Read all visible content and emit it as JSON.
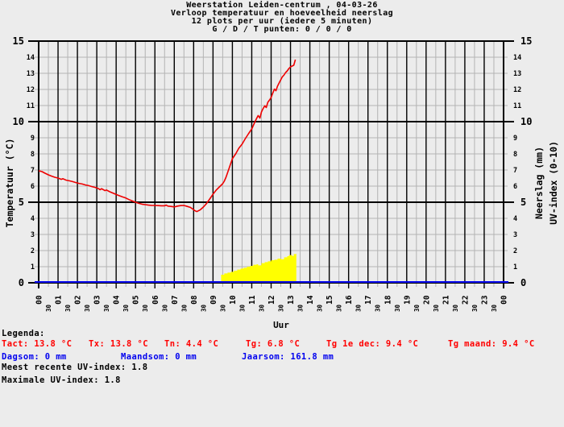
{
  "title": {
    "line1": "Weerstation Leiden-centrum , 04-03-26",
    "line2": "Verloop temperatuur en hoeveelheid neerslag",
    "line3": "12 plots per uur (iedere 5 minuten)",
    "line4": "G / D / T punten: 0 / 0 / 0"
  },
  "colors": {
    "background": "#ececec",
    "grid_minor": "#b3b3b3",
    "grid_major": "#000000",
    "temperature": "#ee0000",
    "precipitation": "#0000ee",
    "uv_fill": "#ffff00"
  },
  "legend": {
    "heading": "Legenda:",
    "temp_items": [
      "Tact: 13.8 °C",
      "Tx: 13.8 °C",
      "Tn: 4.4 °C",
      "Tg: 6.8 °C",
      "Tg 1e dec: 9.4 °C",
      "Tg maand: 9.4 °C"
    ],
    "rain_items": [
      "Dagsom: 0 mm",
      "Maandsom: 0 mm",
      "Jaarsom: 161.8 mm"
    ],
    "uv_recent": "Meest recente UV-index: 1.8",
    "uv_max": "Maximale UV-index: 1.8"
  },
  "chart_data": {
    "type": "line",
    "title": "Weerstation Leiden-centrum , 04-03-26 — Verloop temperatuur en hoeveelheid neerslag",
    "xlabel": "Uur",
    "ylabel_left": "Temperatuur (°C)",
    "ylabel_right_1": "Neerslag (mm)",
    "ylabel_right_2": "UV-index (0-10)",
    "xlim": [
      0,
      24
    ],
    "ylim": [
      0,
      15
    ],
    "y_major_step": 5,
    "y_minor_step": 1,
    "x_major_step_hours": 1,
    "x_minor_step_hours": 0.5,
    "hour_labels": [
      "00",
      "01",
      "02",
      "03",
      "04",
      "05",
      "06",
      "07",
      "08",
      "09",
      "10",
      "11",
      "12",
      "13",
      "14",
      "15",
      "16",
      "17",
      "18",
      "19",
      "20",
      "21",
      "22",
      "23",
      "00"
    ],
    "half_hour_label": "30",
    "grid": true,
    "legend_position": "below",
    "series": [
      {
        "name": "Temperatuur (°C)",
        "style": "line",
        "color": "#ee0000",
        "points": [
          [
            0,
            6.95
          ],
          [
            0.17,
            6.9
          ],
          [
            0.33,
            6.8
          ],
          [
            0.5,
            6.7
          ],
          [
            0.67,
            6.62
          ],
          [
            0.83,
            6.55
          ],
          [
            1,
            6.5
          ],
          [
            1.17,
            6.42
          ],
          [
            1.25,
            6.46
          ],
          [
            1.42,
            6.37
          ],
          [
            1.58,
            6.33
          ],
          [
            1.75,
            6.28
          ],
          [
            1.92,
            6.22
          ],
          [
            2.08,
            6.17
          ],
          [
            2.25,
            6.13
          ],
          [
            2.42,
            6.07
          ],
          [
            2.58,
            6.03
          ],
          [
            2.75,
            5.97
          ],
          [
            2.92,
            5.92
          ],
          [
            3.08,
            5.85
          ],
          [
            3.17,
            5.78
          ],
          [
            3.25,
            5.84
          ],
          [
            3.42,
            5.72
          ],
          [
            3.5,
            5.76
          ],
          [
            3.67,
            5.65
          ],
          [
            3.83,
            5.57
          ],
          [
            4,
            5.48
          ],
          [
            4.17,
            5.4
          ],
          [
            4.33,
            5.33
          ],
          [
            4.5,
            5.26
          ],
          [
            4.67,
            5.16
          ],
          [
            4.83,
            5.08
          ],
          [
            5,
            5.0
          ],
          [
            5.17,
            4.93
          ],
          [
            5.33,
            4.88
          ],
          [
            5.5,
            4.85
          ],
          [
            5.67,
            4.82
          ],
          [
            5.83,
            4.8
          ],
          [
            6,
            4.8
          ],
          [
            6.17,
            4.79
          ],
          [
            6.33,
            4.78
          ],
          [
            6.5,
            4.78
          ],
          [
            6.58,
            4.82
          ],
          [
            6.67,
            4.76
          ],
          [
            6.83,
            4.74
          ],
          [
            7,
            4.71
          ],
          [
            7.17,
            4.76
          ],
          [
            7.33,
            4.79
          ],
          [
            7.5,
            4.8
          ],
          [
            7.67,
            4.74
          ],
          [
            7.83,
            4.68
          ],
          [
            8,
            4.54
          ],
          [
            8.08,
            4.46
          ],
          [
            8.17,
            4.42
          ],
          [
            8.33,
            4.52
          ],
          [
            8.5,
            4.7
          ],
          [
            8.67,
            4.92
          ],
          [
            8.83,
            5.2
          ],
          [
            9,
            5.5
          ],
          [
            9.17,
            5.76
          ],
          [
            9.33,
            5.95
          ],
          [
            9.5,
            6.15
          ],
          [
            9.58,
            6.3
          ],
          [
            9.67,
            6.55
          ],
          [
            9.83,
            7.1
          ],
          [
            10,
            7.7
          ],
          [
            10.17,
            8.0
          ],
          [
            10.33,
            8.35
          ],
          [
            10.5,
            8.6
          ],
          [
            10.67,
            8.95
          ],
          [
            10.83,
            9.25
          ],
          [
            11,
            9.55
          ],
          [
            11.17,
            10.0
          ],
          [
            11.25,
            10.2
          ],
          [
            11.33,
            10.38
          ],
          [
            11.42,
            10.22
          ],
          [
            11.5,
            10.6
          ],
          [
            11.58,
            10.8
          ],
          [
            11.67,
            10.98
          ],
          [
            11.75,
            10.88
          ],
          [
            11.83,
            11.2
          ],
          [
            11.92,
            11.35
          ],
          [
            12,
            11.5
          ],
          [
            12.08,
            11.75
          ],
          [
            12.17,
            12.02
          ],
          [
            12.25,
            11.92
          ],
          [
            12.33,
            12.2
          ],
          [
            12.42,
            12.42
          ],
          [
            12.5,
            12.6
          ],
          [
            12.58,
            12.78
          ],
          [
            12.67,
            12.9
          ],
          [
            12.75,
            13.05
          ],
          [
            12.83,
            13.15
          ],
          [
            12.92,
            13.3
          ],
          [
            13,
            13.4
          ],
          [
            13.08,
            13.45
          ],
          [
            13.17,
            13.5
          ],
          [
            13.25,
            13.85
          ]
        ]
      },
      {
        "name": "UV-index (0-10)",
        "style": "step-area",
        "color": "#ffff00",
        "end_x": 13.3,
        "points": [
          [
            9.42,
            0.5
          ],
          [
            9.58,
            0.58
          ],
          [
            9.75,
            0.63
          ],
          [
            9.92,
            0.68
          ],
          [
            10.08,
            0.75
          ],
          [
            10.25,
            0.82
          ],
          [
            10.42,
            0.88
          ],
          [
            10.58,
            0.93
          ],
          [
            10.75,
            1.0
          ],
          [
            10.92,
            1.05
          ],
          [
            11.08,
            1.12
          ],
          [
            11.25,
            1.15
          ],
          [
            11.33,
            1.08
          ],
          [
            11.5,
            1.22
          ],
          [
            11.67,
            1.28
          ],
          [
            11.83,
            1.33
          ],
          [
            12,
            1.4
          ],
          [
            12.17,
            1.43
          ],
          [
            12.33,
            1.5
          ],
          [
            12.5,
            1.46
          ],
          [
            12.67,
            1.58
          ],
          [
            12.83,
            1.65
          ],
          [
            12.92,
            1.72
          ],
          [
            13.08,
            1.66
          ],
          [
            13.17,
            1.78
          ],
          [
            13.28,
            1.8
          ]
        ]
      },
      {
        "name": "Neerslag (mm)",
        "style": "line",
        "color": "#0000ee",
        "points": [
          [
            0,
            0
          ],
          [
            24,
            0
          ]
        ]
      }
    ]
  }
}
